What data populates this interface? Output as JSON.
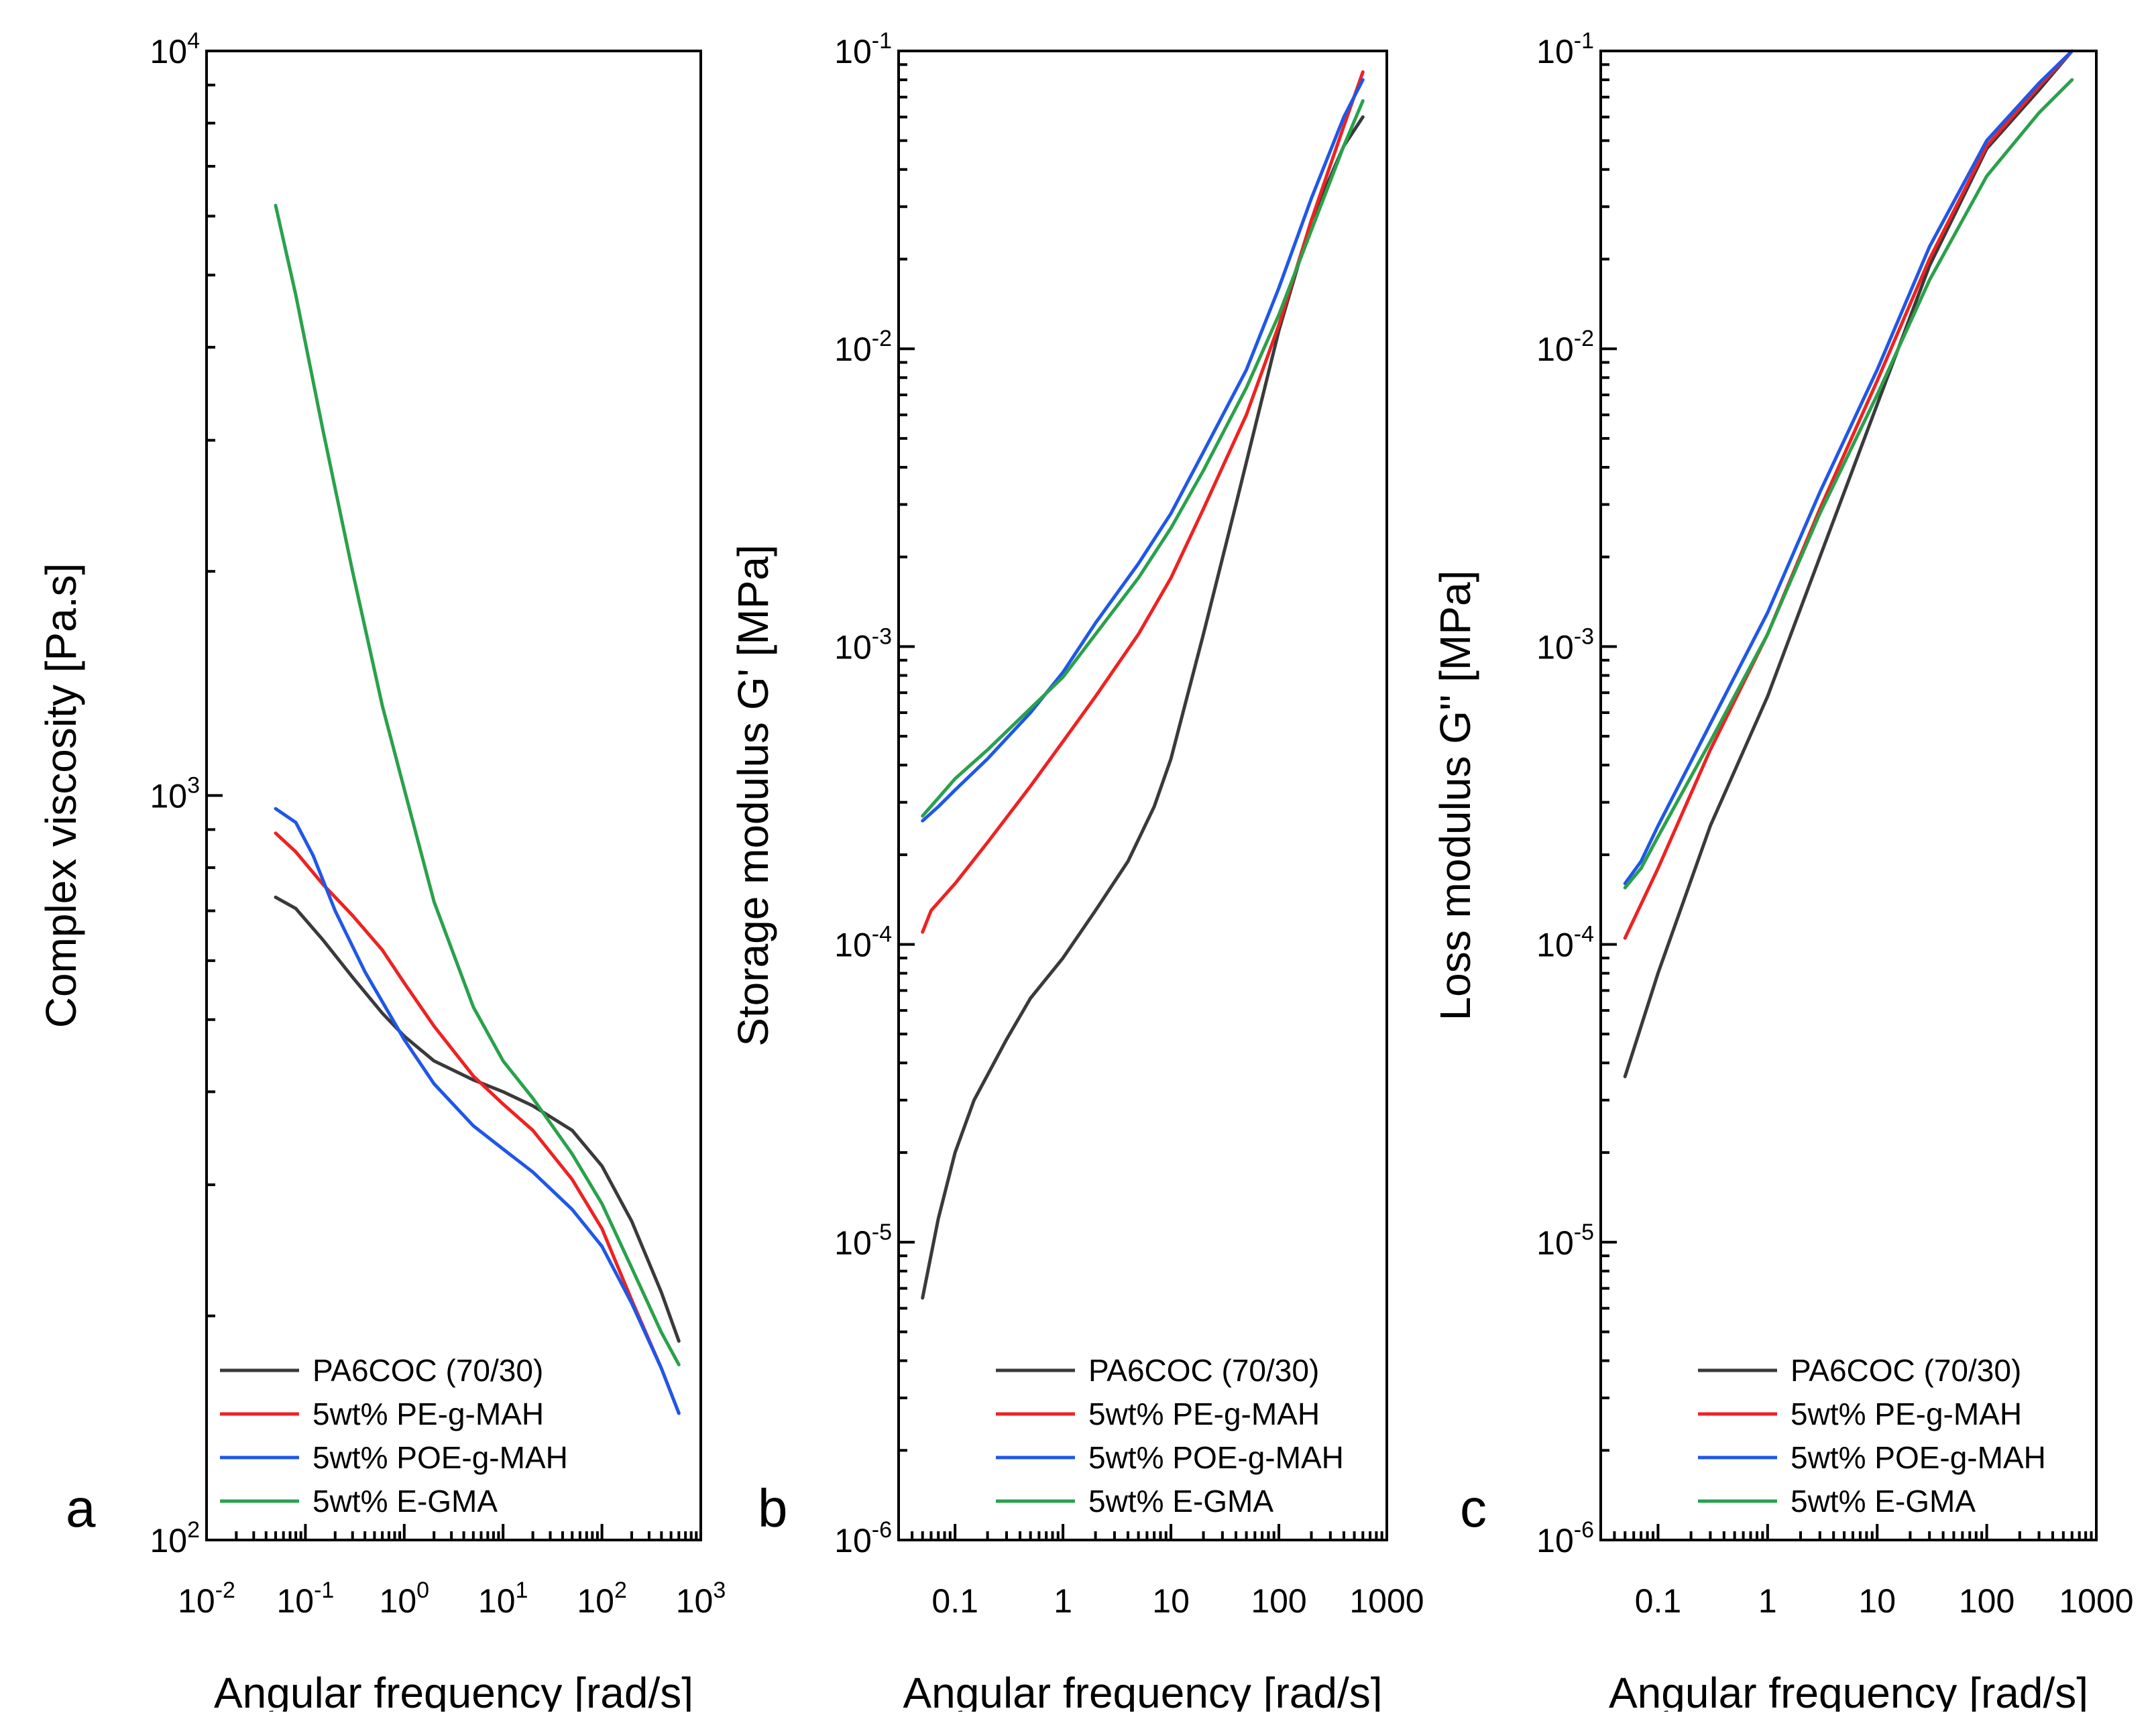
{
  "chart_data": [
    {
      "type": "line",
      "panel_label": "a",
      "xlabel": "Angular frequency [rad/s]",
      "ylabel": "Complex viscosity [Pa.s]",
      "xscale": "log",
      "yscale": "log",
      "xlim": [
        0.01,
        1000
      ],
      "ylim": [
        100,
        10000
      ],
      "x_ticks": [
        0.01,
        0.1,
        1,
        10,
        100,
        1000
      ],
      "x_tick_labels": [
        {
          "base": "10",
          "exp": "-2"
        },
        {
          "base": "10",
          "exp": "-1"
        },
        {
          "base": "10",
          "exp": "0"
        },
        {
          "base": "10",
          "exp": "1"
        },
        {
          "base": "10",
          "exp": "2"
        },
        {
          "base": "10",
          "exp": "3"
        }
      ],
      "y_ticks": [
        100,
        1000,
        10000
      ],
      "y_tick_labels": [
        {
          "base": "10",
          "exp": "2"
        },
        {
          "base": "10",
          "exp": "3"
        },
        {
          "base": "10",
          "exp": "4"
        }
      ],
      "legend_position": "bottom-left",
      "series": [
        {
          "name": "PA6COC (70/30)",
          "color": "#3a3a3a",
          "x": [
            0.05,
            0.08,
            0.15,
            0.3,
            0.6,
            1,
            2,
            5,
            10,
            20,
            50,
            100,
            200,
            400,
            600
          ],
          "y": [
            730,
            705,
            640,
            570,
            510,
            475,
            440,
            415,
            400,
            383,
            355,
            318,
            268,
            215,
            185
          ]
        },
        {
          "name": "5wt% PE-g-MAH",
          "color": "#ee2222",
          "x": [
            0.05,
            0.08,
            0.15,
            0.3,
            0.6,
            1,
            2,
            5,
            10,
            20,
            50,
            100,
            200,
            400,
            600
          ],
          "y": [
            890,
            840,
            760,
            690,
            620,
            560,
            490,
            420,
            385,
            355,
            305,
            262,
            210,
            170,
            148
          ]
        },
        {
          "name": "5wt% POE-g-MAH",
          "color": "#1f57e8",
          "x": [
            0.05,
            0.08,
            0.12,
            0.2,
            0.4,
            1,
            2,
            5,
            10,
            20,
            50,
            100,
            200,
            400,
            600
          ],
          "y": [
            960,
            920,
            830,
            700,
            580,
            470,
            410,
            360,
            335,
            312,
            278,
            248,
            208,
            170,
            148
          ]
        },
        {
          "name": "5wt% E-GMA",
          "color": "#2aa14b",
          "x": [
            0.05,
            0.08,
            0.15,
            0.3,
            0.6,
            1,
            2,
            5,
            10,
            20,
            50,
            100,
            200,
            400,
            600
          ],
          "y": [
            6200,
            4700,
            3100,
            2000,
            1320,
            1020,
            720,
            520,
            440,
            392,
            330,
            283,
            232,
            190,
            172
          ]
        }
      ]
    },
    {
      "type": "line",
      "panel_label": "b",
      "xlabel": "Angular frequency [rad/s]",
      "ylabel": "Storage modulus G' [MPa]",
      "xscale": "log",
      "yscale": "log",
      "xlim": [
        0.03,
        1000
      ],
      "ylim": [
        1e-06,
        0.1
      ],
      "x_ticks": [
        0.1,
        1,
        10,
        100,
        1000
      ],
      "x_tick_labels": [
        "0.1",
        "1",
        "10",
        "100",
        "1000"
      ],
      "y_ticks": [
        1e-06,
        1e-05,
        0.0001,
        0.001,
        0.01,
        0.1
      ],
      "y_tick_labels": [
        {
          "base": "10",
          "exp": "-6"
        },
        {
          "base": "10",
          "exp": "-5"
        },
        {
          "base": "10",
          "exp": "-4"
        },
        {
          "base": "10",
          "exp": "-3"
        },
        {
          "base": "10",
          "exp": "-2"
        },
        {
          "base": "10",
          "exp": "-1"
        }
      ],
      "legend_position": "bottom-right",
      "series": [
        {
          "name": "PA6COC (70/30)",
          "color": "#3a3a3a",
          "x": [
            0.05,
            0.07,
            0.1,
            0.15,
            0.3,
            0.5,
            1,
            2,
            4,
            7,
            10,
            20,
            40,
            100,
            200,
            400,
            600
          ],
          "y": [
            6.5e-06,
            1.2e-05,
            2e-05,
            3e-05,
            4.8e-05,
            6.6e-05,
            9e-05,
            0.00013,
            0.00019,
            0.00029,
            0.00042,
            0.0011,
            0.003,
            0.0115,
            0.027,
            0.048,
            0.06
          ]
        },
        {
          "name": "5wt% PE-g-MAH",
          "color": "#ee2222",
          "x": [
            0.05,
            0.06,
            0.1,
            0.2,
            0.5,
            1,
            2,
            5,
            10,
            20,
            50,
            100,
            200,
            400,
            600
          ],
          "y": [
            0.00011,
            0.00013,
            0.00016,
            0.00022,
            0.00034,
            0.00048,
            0.00068,
            0.0011,
            0.0017,
            0.0029,
            0.006,
            0.012,
            0.027,
            0.056,
            0.085
          ]
        },
        {
          "name": "5wt% POE-g-MAH",
          "color": "#1f57e8",
          "x": [
            0.05,
            0.07,
            0.1,
            0.2,
            0.5,
            1,
            2,
            5,
            10,
            20,
            50,
            100,
            200,
            400,
            600
          ],
          "y": [
            0.00026,
            0.00029,
            0.00033,
            0.00042,
            0.0006,
            0.00082,
            0.0012,
            0.0019,
            0.0028,
            0.0045,
            0.0085,
            0.016,
            0.032,
            0.06,
            0.08
          ]
        },
        {
          "name": "5wt% E-GMA",
          "color": "#2aa14b",
          "x": [
            0.05,
            0.07,
            0.1,
            0.2,
            0.5,
            1,
            2,
            5,
            10,
            20,
            50,
            100,
            200,
            400,
            600
          ],
          "y": [
            0.00027,
            0.00031,
            0.00036,
            0.00045,
            0.00062,
            0.00079,
            0.0011,
            0.0017,
            0.0025,
            0.0039,
            0.0074,
            0.013,
            0.025,
            0.048,
            0.068
          ]
        }
      ]
    },
    {
      "type": "line",
      "panel_label": "c",
      "xlabel": "Angular frequency [rad/s]",
      "ylabel": "Loss modulus G'' [MPa]",
      "xscale": "log",
      "yscale": "log",
      "xlim": [
        0.03,
        1000
      ],
      "ylim": [
        1e-06,
        0.1
      ],
      "x_ticks": [
        0.1,
        1,
        10,
        100,
        1000
      ],
      "x_tick_labels": [
        "0.1",
        "1",
        "10",
        "100",
        "1000"
      ],
      "y_ticks": [
        1e-06,
        1e-05,
        0.0001,
        0.001,
        0.01,
        0.1
      ],
      "y_tick_labels": [
        {
          "base": "10",
          "exp": "-6"
        },
        {
          "base": "10",
          "exp": "-5"
        },
        {
          "base": "10",
          "exp": "-4"
        },
        {
          "base": "10",
          "exp": "-3"
        },
        {
          "base": "10",
          "exp": "-2"
        },
        {
          "base": "10",
          "exp": "-1"
        }
      ],
      "legend_position": "bottom-right",
      "series": [
        {
          "name": "PA6COC (70/30)",
          "color": "#3a3a3a",
          "x": [
            0.05,
            0.1,
            0.3,
            1,
            3,
            10,
            30,
            100,
            300,
            600
          ],
          "y": [
            3.6e-05,
            8e-05,
            0.00025,
            0.00068,
            0.002,
            0.0065,
            0.019,
            0.047,
            0.074,
            0.1
          ]
        },
        {
          "name": "5wt% PE-g-MAH",
          "color": "#ee2222",
          "x": [
            0.05,
            0.1,
            0.3,
            1,
            3,
            10,
            30,
            100,
            300,
            600
          ],
          "y": [
            0.000105,
            0.00018,
            0.00045,
            0.0011,
            0.0029,
            0.0078,
            0.02,
            0.048,
            0.076,
            0.1
          ]
        },
        {
          "name": "5wt% POE-g-MAH",
          "color": "#1f57e8",
          "x": [
            0.05,
            0.07,
            0.1,
            0.3,
            1,
            3,
            10,
            30,
            100,
            300,
            600
          ],
          "y": [
            0.00016,
            0.00019,
            0.00025,
            0.00055,
            0.0013,
            0.0033,
            0.0085,
            0.022,
            0.05,
            0.078,
            0.1
          ]
        },
        {
          "name": "5wt% E-GMA",
          "color": "#2aa14b",
          "x": [
            0.05,
            0.07,
            0.1,
            0.3,
            1,
            3,
            10,
            30,
            100,
            300,
            600
          ],
          "y": [
            0.000155,
            0.00018,
            0.00023,
            0.00048,
            0.0011,
            0.0028,
            0.007,
            0.017,
            0.038,
            0.062,
            0.08
          ]
        }
      ]
    }
  ]
}
